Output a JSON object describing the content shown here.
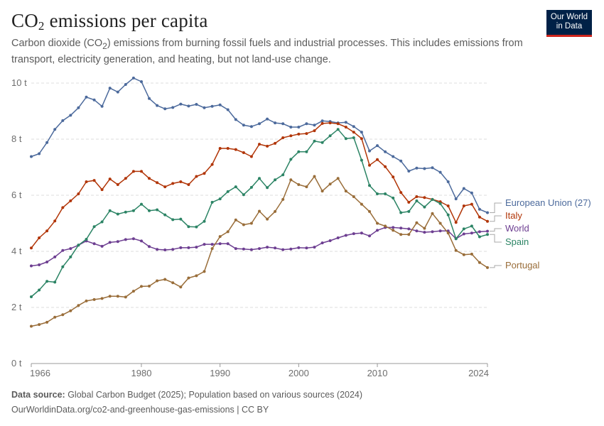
{
  "header": {
    "title_main": "CO",
    "title_sub": "2",
    "title_rest": " emissions per capita",
    "subtitle_before": "Carbon dioxide (CO",
    "subtitle_sub": "2",
    "subtitle_after": ") emissions from burning fossil fuels and industrial processes. This includes emissions from transport, electricity generation, and heating, but not land-use change."
  },
  "logo": {
    "line1": "Our World",
    "line2": "in Data"
  },
  "footer": {
    "source_label": "Data source:",
    "source_text": " Global Carbon Budget (2025); Population based on various sources (2024)",
    "url_text": "OurWorldinData.org/co2-and-greenhouse-gas-emissions | CC BY"
  },
  "chart_data": {
    "type": "line",
    "title": "CO₂ emissions per capita",
    "xlim": [
      1966,
      2024
    ],
    "ylim": [
      0,
      10
    ],
    "x_ticks": [
      1966,
      1980,
      1990,
      2000,
      2010,
      2024
    ],
    "x_tick_labels": [
      "1966",
      "1980",
      "1990",
      "2000",
      "2010",
      "2024"
    ],
    "y_ticks": [
      0,
      2,
      4,
      6,
      8,
      10
    ],
    "y_tick_labels": [
      "0 t",
      "2 t",
      "4 t",
      "6 t",
      "8 t",
      "10 t"
    ],
    "grid": "horizontal dashed",
    "legend": "right, labels at line ends",
    "x": [
      1966,
      1967,
      1968,
      1969,
      1970,
      1971,
      1972,
      1973,
      1974,
      1975,
      1976,
      1977,
      1978,
      1979,
      1980,
      1981,
      1982,
      1983,
      1984,
      1985,
      1986,
      1987,
      1988,
      1989,
      1990,
      1991,
      1992,
      1993,
      1994,
      1995,
      1996,
      1997,
      1998,
      1999,
      2000,
      2001,
      2002,
      2003,
      2004,
      2005,
      2006,
      2007,
      2008,
      2009,
      2010,
      2011,
      2012,
      2013,
      2014,
      2015,
      2016,
      2017,
      2018,
      2019,
      2020,
      2021,
      2022,
      2023,
      2024
    ],
    "series": [
      {
        "name": "European Union (27)",
        "color": "#4c6a9c",
        "values": [
          7.38,
          7.48,
          7.88,
          8.35,
          8.66,
          8.85,
          9.12,
          9.5,
          9.4,
          9.17,
          9.82,
          9.68,
          9.95,
          10.18,
          10.05,
          9.45,
          9.2,
          9.08,
          9.13,
          9.25,
          9.18,
          9.24,
          9.12,
          9.17,
          9.22,
          9.05,
          8.7,
          8.5,
          8.45,
          8.55,
          8.72,
          8.58,
          8.55,
          8.43,
          8.43,
          8.55,
          8.5,
          8.65,
          8.63,
          8.58,
          8.6,
          8.45,
          8.25,
          7.58,
          7.77,
          7.55,
          7.38,
          7.22,
          6.86,
          6.97,
          6.95,
          6.98,
          6.82,
          6.48,
          5.87,
          6.24,
          6.08,
          5.5,
          5.38
        ]
      },
      {
        "name": "Italy",
        "color": "#b13507",
        "values": [
          4.12,
          4.48,
          4.73,
          5.08,
          5.56,
          5.8,
          6.05,
          6.48,
          6.53,
          6.2,
          6.58,
          6.38,
          6.6,
          6.85,
          6.85,
          6.6,
          6.45,
          6.3,
          6.42,
          6.48,
          6.38,
          6.67,
          6.78,
          7.1,
          7.67,
          7.67,
          7.63,
          7.52,
          7.38,
          7.82,
          7.75,
          7.85,
          8.05,
          8.12,
          8.18,
          8.2,
          8.3,
          8.56,
          8.58,
          8.55,
          8.43,
          8.25,
          8.02,
          7.07,
          7.27,
          7.02,
          6.65,
          6.1,
          5.75,
          5.95,
          5.92,
          5.85,
          5.77,
          5.62,
          5.03,
          5.62,
          5.68,
          5.22,
          5.07
        ]
      },
      {
        "name": "World",
        "color": "#6d3e91",
        "values": [
          3.48,
          3.52,
          3.62,
          3.8,
          4.03,
          4.1,
          4.22,
          4.37,
          4.27,
          4.18,
          4.32,
          4.35,
          4.42,
          4.45,
          4.37,
          4.17,
          4.07,
          4.05,
          4.07,
          4.13,
          4.13,
          4.15,
          4.25,
          4.25,
          4.27,
          4.27,
          4.1,
          4.08,
          4.06,
          4.1,
          4.15,
          4.12,
          4.06,
          4.08,
          4.13,
          4.12,
          4.15,
          4.3,
          4.38,
          4.48,
          4.57,
          4.63,
          4.65,
          4.55,
          4.75,
          4.85,
          4.85,
          4.83,
          4.8,
          4.73,
          4.68,
          4.7,
          4.73,
          4.73,
          4.45,
          4.62,
          4.65,
          4.7,
          4.72
        ]
      },
      {
        "name": "Spain",
        "color": "#2c8465",
        "values": [
          2.38,
          2.62,
          2.93,
          2.9,
          3.45,
          3.8,
          4.22,
          4.43,
          4.88,
          5.05,
          5.45,
          5.33,
          5.4,
          5.45,
          5.68,
          5.45,
          5.48,
          5.3,
          5.13,
          5.15,
          4.88,
          4.87,
          5.07,
          5.75,
          5.87,
          6.13,
          6.3,
          6.02,
          6.28,
          6.6,
          6.27,
          6.55,
          6.73,
          7.28,
          7.55,
          7.55,
          7.93,
          7.88,
          8.12,
          8.35,
          8.02,
          8.05,
          7.25,
          6.35,
          6.05,
          6.05,
          5.9,
          5.38,
          5.42,
          5.8,
          5.58,
          5.85,
          5.7,
          5.3,
          4.45,
          4.8,
          4.9,
          4.52,
          4.6
        ]
      },
      {
        "name": "Portugal",
        "color": "#996d39",
        "values": [
          1.33,
          1.39,
          1.47,
          1.65,
          1.74,
          1.88,
          2.07,
          2.23,
          2.28,
          2.32,
          2.4,
          2.4,
          2.37,
          2.58,
          2.75,
          2.76,
          2.95,
          3.0,
          2.88,
          2.73,
          3.05,
          3.13,
          3.28,
          4.1,
          4.53,
          4.7,
          5.12,
          4.95,
          5.0,
          5.43,
          5.15,
          5.42,
          5.85,
          6.55,
          6.38,
          6.3,
          6.67,
          6.15,
          6.4,
          6.6,
          6.15,
          5.95,
          5.68,
          5.42,
          5.0,
          4.9,
          4.75,
          4.6,
          4.6,
          5.02,
          4.82,
          5.35,
          5.0,
          4.65,
          4.03,
          3.88,
          3.9,
          3.6,
          3.42
        ]
      }
    ]
  }
}
